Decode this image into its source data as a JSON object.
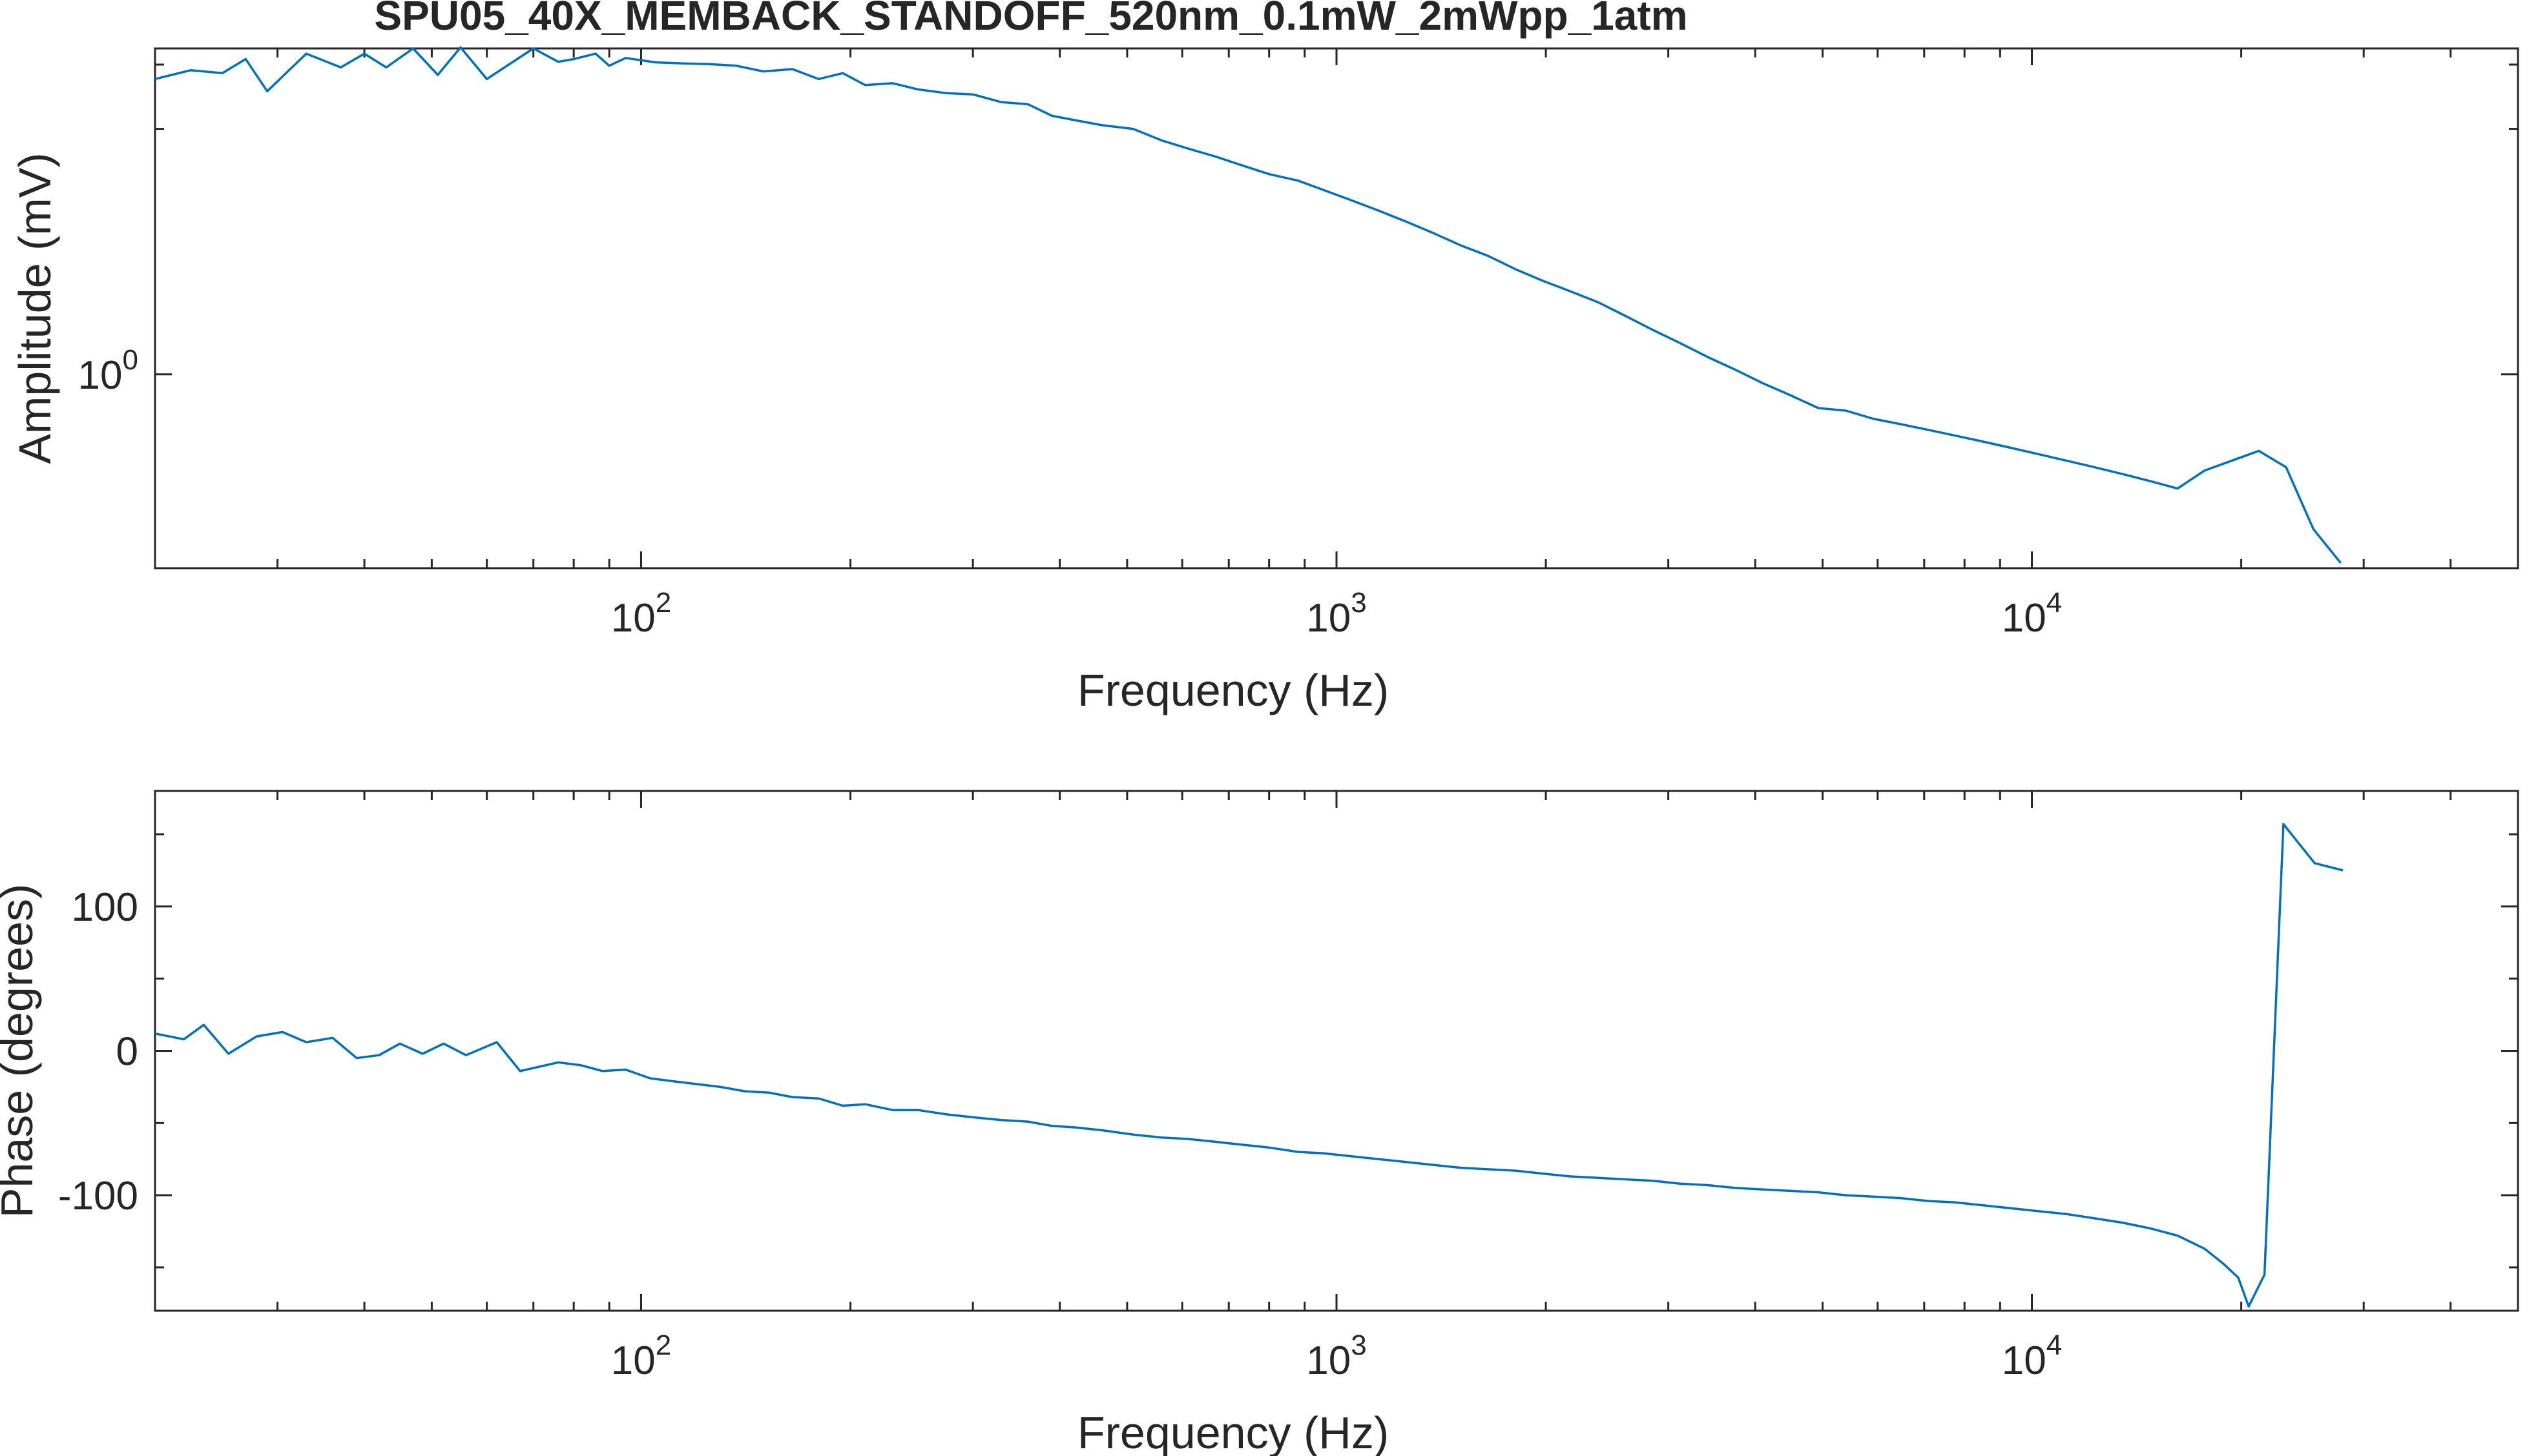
{
  "chart_data": {
    "title": "SPU05_40X_MEMBACK_STANDOFF_520nm_0.1mW_2mWpp_1atm",
    "line_color": "#0072BD",
    "panels": [
      {
        "type": "line",
        "xlabel": "Frequency (Hz)",
        "ylabel": "Amplitude (mV)",
        "xscale": "log",
        "yscale": "log",
        "xlim": [
          20,
          50000
        ],
        "ylim": [
          0.42,
          4.3
        ],
        "x_tick_labels": [
          {
            "base": "10",
            "exp": "2",
            "value": 100
          },
          {
            "base": "10",
            "exp": "3",
            "value": 1000
          },
          {
            "base": "10",
            "exp": "4",
            "value": 10000
          }
        ],
        "y_tick_labels": [
          {
            "base": "10",
            "exp": "0",
            "value": 1
          }
        ],
        "grid": false,
        "series": [
          {
            "x": [
              20,
              22.5,
              25,
              27,
              29,
              33,
              37,
              40,
              43,
              47,
              51,
              55,
              60,
              70,
              76,
              80,
              86,
              90,
              95,
              105,
              115,
              125,
              137,
              150,
              165,
              180,
              195,
              210,
              230,
              250,
              275,
              300,
              330,
              360,
              390,
              420,
              460,
              510,
              560,
              610,
              670,
              730,
              800,
              880,
              960,
              1050,
              1150,
              1260,
              1380,
              1510,
              1650,
              1810,
              1980,
              2170,
              2380,
              2600,
              2850,
              3120,
              3420,
              3750,
              4110,
              4500,
              4930,
              5400,
              5910,
              6480,
              7100,
              7770,
              8510,
              9320,
              10200,
              11200,
              12300,
              13500,
              14800,
              16200,
              17700,
              19400,
              21200,
              23200,
              25400,
              27800
            ],
            "y": [
              3.75,
              3.9,
              3.85,
              4.1,
              3.55,
              4.2,
              3.95,
              4.2,
              3.95,
              4.3,
              3.82,
              4.32,
              3.75,
              4.3,
              4.05,
              4.1,
              4.2,
              3.98,
              4.12,
              4.04,
              4.02,
              4.01,
              3.98,
              3.88,
              3.92,
              3.75,
              3.85,
              3.65,
              3.68,
              3.58,
              3.52,
              3.5,
              3.38,
              3.35,
              3.18,
              3.12,
              3.05,
              3.0,
              2.85,
              2.75,
              2.65,
              2.55,
              2.45,
              2.38,
              2.28,
              2.18,
              2.08,
              1.98,
              1.88,
              1.78,
              1.7,
              1.6,
              1.52,
              1.45,
              1.38,
              1.3,
              1.22,
              1.15,
              1.08,
              1.02,
              0.96,
              0.91,
              0.86,
              0.85,
              0.82,
              0.8,
              0.78,
              0.76,
              0.74,
              0.72,
              0.7,
              0.68,
              0.66,
              0.64,
              0.62,
              0.6,
              0.65,
              0.68,
              0.71,
              0.66,
              0.5,
              0.43
            ]
          }
        ]
      },
      {
        "type": "line",
        "xlabel": "Frequency (Hz)",
        "ylabel": "Phase (degrees)",
        "xscale": "log",
        "yscale": "linear",
        "xlim": [
          20,
          50000
        ],
        "ylim": [
          -180,
          180
        ],
        "x_tick_labels": [
          {
            "base": "10",
            "exp": "2",
            "value": 100
          },
          {
            "base": "10",
            "exp": "3",
            "value": 1000
          },
          {
            "base": "10",
            "exp": "4",
            "value": 10000
          }
        ],
        "y_tick_labels": [
          {
            "text": "100",
            "value": 100
          },
          {
            "text": "0",
            "value": 0
          },
          {
            "text": "-100",
            "value": -100
          }
        ],
        "grid": false,
        "series": [
          {
            "x": [
              20,
              22,
              23.5,
              25.5,
              28,
              30.5,
              33,
              36,
              39,
              42,
              45,
              48.5,
              52,
              56,
              62,
              67,
              76,
              82,
              88,
              95,
              103,
              111,
              120,
              130,
              141,
              153,
              165,
              180,
              195,
              210,
              230,
              250,
              275,
              300,
              330,
              360,
              390,
              420,
              460,
              510,
              560,
              610,
              670,
              730,
              800,
              880,
              960,
              1050,
              1150,
              1260,
              1380,
              1510,
              1650,
              1810,
              1980,
              2170,
              2380,
              2600,
              2850,
              3120,
              3420,
              3750,
              4110,
              4500,
              4930,
              5400,
              5910,
              6480,
              7100,
              7770,
              8510,
              9320,
              10200,
              11200,
              12300,
              13500,
              14800,
              16200,
              17700,
              18800,
              19800,
              20500,
              21600,
              23000,
              25500,
              28000
            ],
            "y": [
              12,
              8,
              18,
              -2,
              10,
              13,
              6,
              9,
              -5,
              -3,
              5,
              -2,
              5,
              -3,
              6,
              -14,
              -8,
              -10,
              -14,
              -13,
              -19,
              -21,
              -23,
              -25,
              -28,
              -29,
              -32,
              -33,
              -38,
              -37,
              -41,
              -41,
              -44,
              -46,
              -48,
              -49,
              -52,
              -53,
              -55,
              -58,
              -60,
              -61,
              -63,
              -65,
              -67,
              -70,
              -71,
              -73,
              -75,
              -77,
              -79,
              -81,
              -82,
              -83,
              -85,
              -87,
              -88,
              -89,
              -90,
              -92,
              -93,
              -95,
              -96,
              -97,
              -98,
              -100,
              -101,
              -102,
              -104,
              -105,
              -107,
              -109,
              -111,
              -113,
              -116,
              -119,
              -123,
              -128,
              -137,
              -147,
              -157,
              -177,
              -155,
              157,
              130,
              125
            ]
          }
        ]
      }
    ]
  }
}
